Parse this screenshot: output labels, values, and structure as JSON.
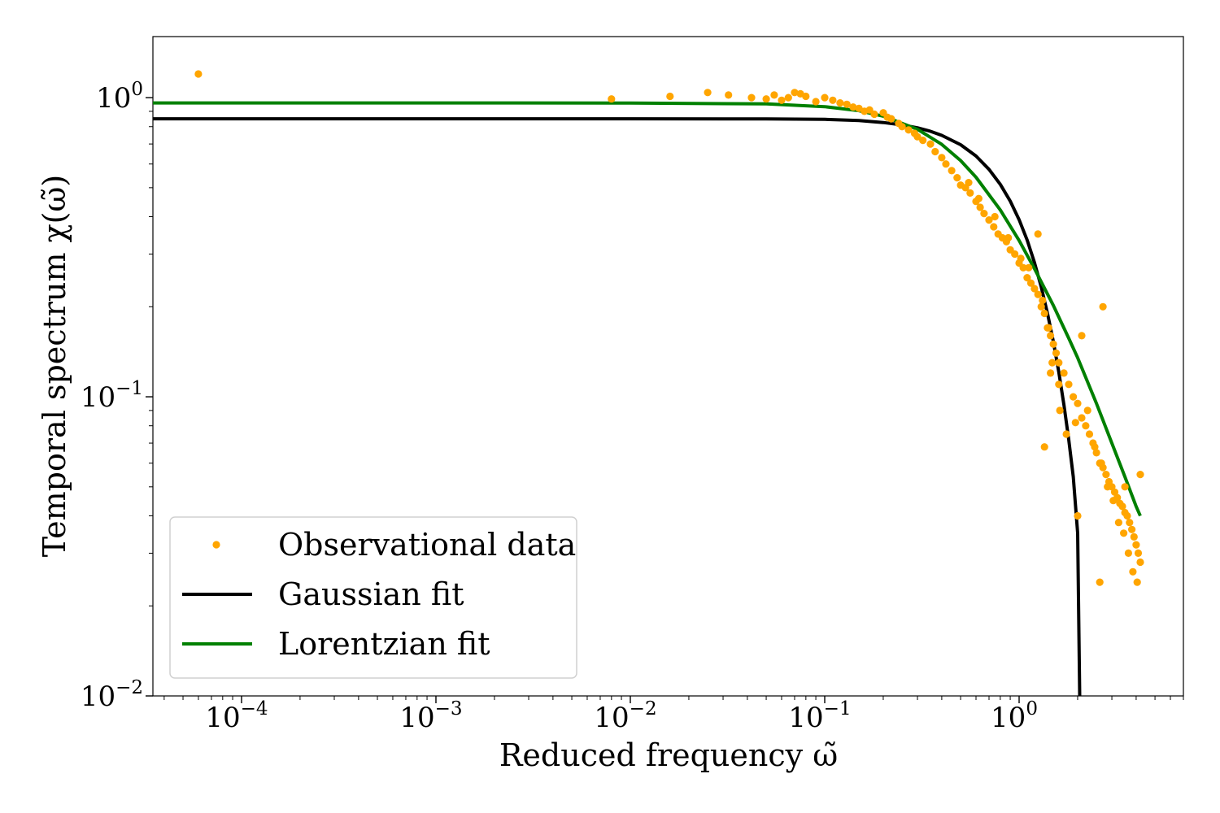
{
  "chart_data": {
    "type": "scatter",
    "title": "",
    "xlabel": "Reduced frequency ω̃",
    "ylabel": "Temporal spectrum χ(ω̃)",
    "xscale": "log",
    "yscale": "log",
    "xlim": [
      3.5e-05,
      7.0
    ],
    "ylim": [
      0.01,
      1.6
    ],
    "x_ticks": [
      {
        "value": 0.0001,
        "base": "10",
        "exp": "−4"
      },
      {
        "value": 0.001,
        "base": "10",
        "exp": "−3"
      },
      {
        "value": 0.01,
        "base": "10",
        "exp": "−2"
      },
      {
        "value": 0.1,
        "base": "10",
        "exp": "−1"
      },
      {
        "value": 1,
        "base": "10",
        "exp": "0"
      }
    ],
    "y_ticks": [
      {
        "value": 0.01,
        "base": "10",
        "exp": "−2"
      },
      {
        "value": 0.1,
        "base": "10",
        "exp": "−1"
      },
      {
        "value": 1,
        "base": "10",
        "exp": "0"
      }
    ],
    "grid": false,
    "legend": {
      "position": "lower-left",
      "entries": [
        {
          "label": "Observational data",
          "kind": "marker",
          "color": "#FFA500"
        },
        {
          "label": "Gaussian fit",
          "kind": "line",
          "color": "#000000"
        },
        {
          "label": "Lorentzian fit",
          "kind": "line",
          "color": "#008000"
        }
      ]
    },
    "series": [
      {
        "name": "Observational data",
        "kind": "scatter",
        "color": "#FFA500",
        "x": [
          6e-05,
          0.008,
          0.016,
          0.025,
          0.032,
          0.042,
          0.05,
          0.055,
          0.06,
          0.065,
          0.07,
          0.075,
          0.08,
          0.09,
          0.1,
          0.11,
          0.12,
          0.13,
          0.14,
          0.15,
          0.16,
          0.17,
          0.18,
          0.2,
          0.21,
          0.22,
          0.24,
          0.25,
          0.27,
          0.29,
          0.3,
          0.32,
          0.35,
          0.37,
          0.4,
          0.42,
          0.45,
          0.48,
          0.5,
          0.53,
          0.56,
          0.6,
          0.63,
          0.66,
          0.7,
          0.74,
          0.78,
          0.82,
          0.86,
          0.9,
          0.95,
          1.0,
          1.05,
          1.1,
          1.15,
          1.2,
          1.25,
          1.3,
          1.35,
          1.4,
          1.45,
          1.5,
          1.55,
          1.6,
          1.7,
          1.8,
          1.9,
          2.0,
          2.1,
          2.2,
          2.3,
          2.4,
          2.5,
          2.6,
          2.7,
          2.8,
          2.9,
          3.0,
          3.1,
          3.2,
          3.3,
          3.4,
          3.5,
          3.6,
          3.7,
          3.8,
          3.9,
          4.0,
          4.1,
          4.2,
          0.55,
          0.62,
          0.75,
          0.88,
          1.02,
          1.12,
          1.32,
          1.42,
          1.48,
          1.62,
          1.75,
          1.95,
          2.25,
          2.45,
          2.65,
          2.85,
          3.05,
          3.25,
          3.45,
          3.65,
          3.85,
          4.05,
          1.25,
          1.6,
          2.1,
          2.7,
          3.5,
          4.2,
          2.0,
          2.6,
          1.35,
          1.45
        ],
        "y": [
          1.2,
          0.99,
          1.01,
          1.04,
          1.02,
          1.0,
          0.99,
          1.02,
          0.98,
          1.0,
          1.04,
          1.03,
          1.01,
          0.97,
          1.0,
          0.98,
          0.96,
          0.95,
          0.93,
          0.92,
          0.9,
          0.91,
          0.88,
          0.89,
          0.86,
          0.85,
          0.82,
          0.8,
          0.78,
          0.76,
          0.74,
          0.72,
          0.7,
          0.66,
          0.63,
          0.6,
          0.57,
          0.54,
          0.51,
          0.5,
          0.48,
          0.45,
          0.43,
          0.41,
          0.39,
          0.37,
          0.35,
          0.34,
          0.33,
          0.31,
          0.3,
          0.28,
          0.27,
          0.25,
          0.24,
          0.23,
          0.22,
          0.2,
          0.19,
          0.17,
          0.16,
          0.15,
          0.14,
          0.13,
          0.12,
          0.11,
          0.1,
          0.095,
          0.085,
          0.08,
          0.075,
          0.07,
          0.065,
          0.06,
          0.058,
          0.055,
          0.052,
          0.05,
          0.048,
          0.046,
          0.044,
          0.043,
          0.041,
          0.04,
          0.038,
          0.036,
          0.034,
          0.032,
          0.03,
          0.028,
          0.52,
          0.46,
          0.4,
          0.34,
          0.29,
          0.27,
          0.21,
          0.17,
          0.13,
          0.09,
          0.075,
          0.082,
          0.09,
          0.068,
          0.06,
          0.05,
          0.045,
          0.038,
          0.035,
          0.03,
          0.026,
          0.024,
          0.35,
          0.11,
          0.16,
          0.2,
          0.05,
          0.055,
          0.04,
          0.024,
          0.068,
          0.12
        ]
      },
      {
        "name": "Gaussian fit",
        "kind": "line",
        "color": "#000000",
        "x": [
          3.5e-05,
          0.0001,
          0.001,
          0.01,
          0.05,
          0.1,
          0.15,
          0.2,
          0.25,
          0.3,
          0.35,
          0.4,
          0.5,
          0.6,
          0.7,
          0.8,
          0.9,
          1.0,
          1.1,
          1.2,
          1.3,
          1.4,
          1.5,
          1.6,
          1.7,
          1.8,
          1.9,
          2.0,
          2.05
        ],
        "y": [
          0.85,
          0.85,
          0.85,
          0.85,
          0.849,
          0.846,
          0.838,
          0.826,
          0.811,
          0.793,
          0.772,
          0.748,
          0.696,
          0.638,
          0.576,
          0.513,
          0.451,
          0.391,
          0.334,
          0.281,
          0.233,
          0.19,
          0.153,
          0.121,
          0.094,
          0.072,
          0.054,
          0.035,
          0.01
        ]
      },
      {
        "name": "Lorentzian fit",
        "kind": "line",
        "color": "#008000",
        "x": [
          3.5e-05,
          0.0001,
          0.001,
          0.01,
          0.05,
          0.1,
          0.15,
          0.2,
          0.3,
          0.4,
          0.5,
          0.6,
          0.8,
          1.0,
          1.2,
          1.5,
          1.8,
          2.0,
          2.5,
          3.0,
          3.5,
          4.0,
          4.2
        ],
        "y": [
          0.96,
          0.96,
          0.96,
          0.959,
          0.953,
          0.933,
          0.904,
          0.867,
          0.784,
          0.698,
          0.616,
          0.542,
          0.421,
          0.333,
          0.268,
          0.202,
          0.157,
          0.135,
          0.095,
          0.07,
          0.054,
          0.043,
          0.04
        ]
      }
    ]
  }
}
